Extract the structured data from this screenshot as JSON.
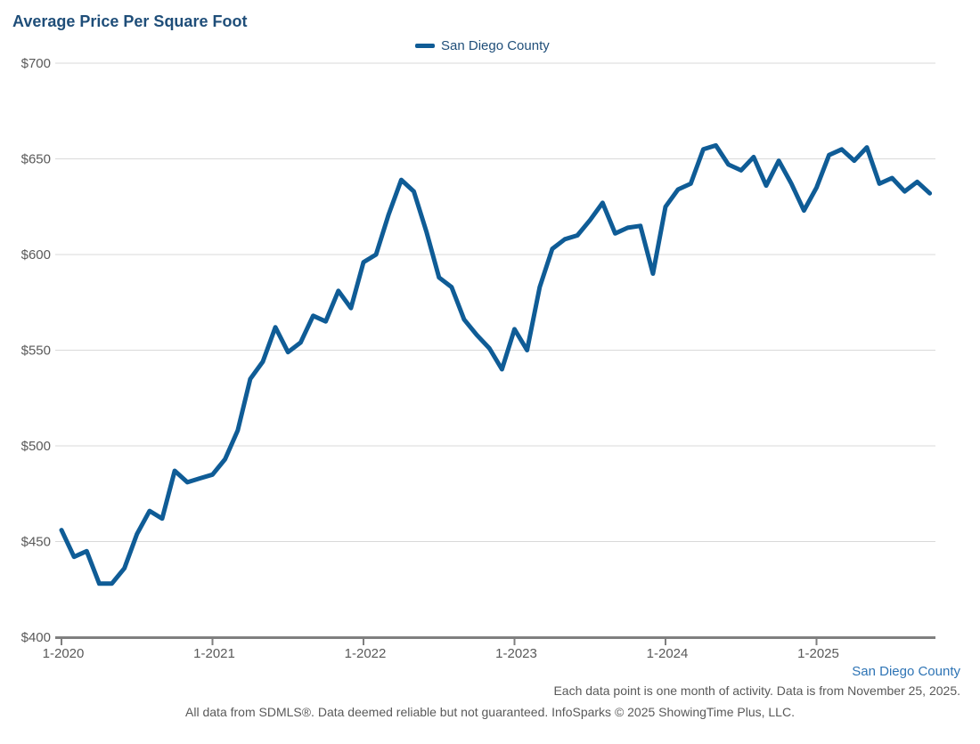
{
  "title": "Average Price Per Square Foot",
  "legend": {
    "label": "San Diego County"
  },
  "footer": {
    "series_label": "San Diego County",
    "note": "Each data point is one month of activity. Data is from November 25, 2025.",
    "disclaimer": "All data from SDMLS®. Data deemed reliable but not guaranteed. InfoSparks © 2025 ShowingTime Plus, LLC."
  },
  "colors": {
    "line": "#0f5c96",
    "title": "#1f4e79",
    "axis_labels": "#595959",
    "gridline": "#d9d9d9",
    "axis_line": "#7f7f7f",
    "footer_series": "#2e74b5"
  },
  "chart_data": {
    "type": "line",
    "title": "Average Price Per Square Foot",
    "xlabel": "",
    "ylabel": "",
    "ylim": [
      400,
      700
    ],
    "y_ticks": [
      400,
      450,
      500,
      550,
      600,
      650,
      700
    ],
    "y_tick_prefix": "$",
    "x_tick_labels": [
      "1-2020",
      "1-2021",
      "1-2022",
      "1-2023",
      "1-2024",
      "1-2025"
    ],
    "x_months_per_tick": 12,
    "grid": "horizontal",
    "legend_position": "top-center",
    "x_start": "1-2020",
    "x_end": "10-2025",
    "series": [
      {
        "name": "San Diego County",
        "values": [
          456,
          442,
          445,
          428,
          428,
          436,
          454,
          466,
          462,
          487,
          481,
          483,
          485,
          493,
          508,
          535,
          544,
          562,
          549,
          554,
          568,
          565,
          581,
          572,
          596,
          600,
          621,
          639,
          633,
          612,
          588,
          583,
          566,
          558,
          551,
          540,
          561,
          550,
          583,
          603,
          608,
          610,
          618,
          627,
          611,
          614,
          615,
          590,
          625,
          634,
          637,
          655,
          657,
          647,
          644,
          651,
          636,
          649,
          637,
          623,
          635,
          652,
          655,
          649,
          656,
          637,
          640,
          633,
          638,
          632
        ]
      }
    ]
  }
}
